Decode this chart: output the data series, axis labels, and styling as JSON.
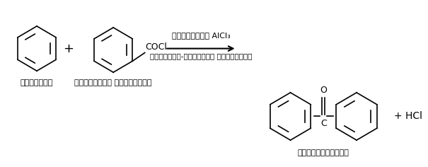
{
  "background_color": "#ffffff",
  "reagent_line": "निर्जलीय AlCl₃",
  "reaction_type": "फ्रीडेल-क्राफ्ट ऐसिलीकरण",
  "benzene_label": "बेन्जीन",
  "benzoyl_label": "बेन्जोइल क्लोराइड",
  "benzophenone_label": "बेन्जोफीनोन",
  "hcl_label": "+ HCl",
  "cocl_label": "COCl",
  "oxygen_label": "O",
  "carbon_label": "C"
}
